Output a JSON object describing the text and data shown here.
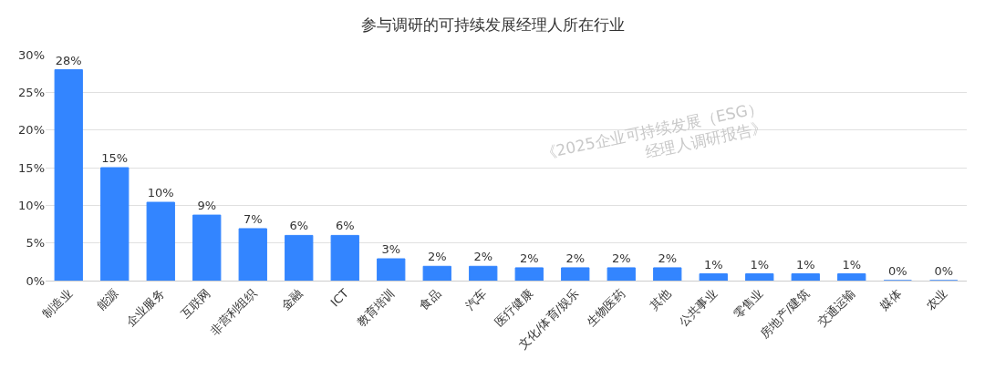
{
  "chart_data": {
    "type": "bar",
    "title": "参与调研的可持续发展经理人所在行业",
    "categories": [
      "制造业",
      "能源",
      "企业服务",
      "互联网",
      "非营利组织",
      "金融",
      "ICT",
      "教育培训",
      "食品",
      "汽车",
      "医疗健康",
      "文化/体育/娱乐",
      "生物医药",
      "其他",
      "公共事业",
      "零售业",
      "房地产/建筑",
      "交通运输",
      "媒体",
      "农业"
    ],
    "values": [
      28,
      15,
      10.4,
      8.7,
      6.9,
      6,
      6,
      2.9,
      1.9,
      1.9,
      1.7,
      1.7,
      1.7,
      1.7,
      0.9,
      0.9,
      0.9,
      0.9,
      0,
      0
    ],
    "value_labels": [
      "28%",
      "15%",
      "10%",
      "9%",
      "7%",
      "6%",
      "6%",
      "3%",
      "2%",
      "2%",
      "2%",
      "2%",
      "2%",
      "2%",
      "1%",
      "1%",
      "1%",
      "1%",
      "0%",
      "0%"
    ],
    "color": "#3385ff",
    "ylim": [
      0,
      30
    ],
    "yticks": [
      {
        "value": 0,
        "label": "0%"
      },
      {
        "value": 5,
        "label": "5%"
      },
      {
        "value": 10,
        "label": "10%"
      },
      {
        "value": 15,
        "label": "15%"
      },
      {
        "value": 20,
        "label": "20%"
      },
      {
        "value": 25,
        "label": "25%"
      },
      {
        "value": 30,
        "label": "30%"
      }
    ],
    "grid": "y",
    "legend": false,
    "annotations": [
      "《2025企业可持续发展（ESG）\n经理人调研报告》"
    ]
  }
}
